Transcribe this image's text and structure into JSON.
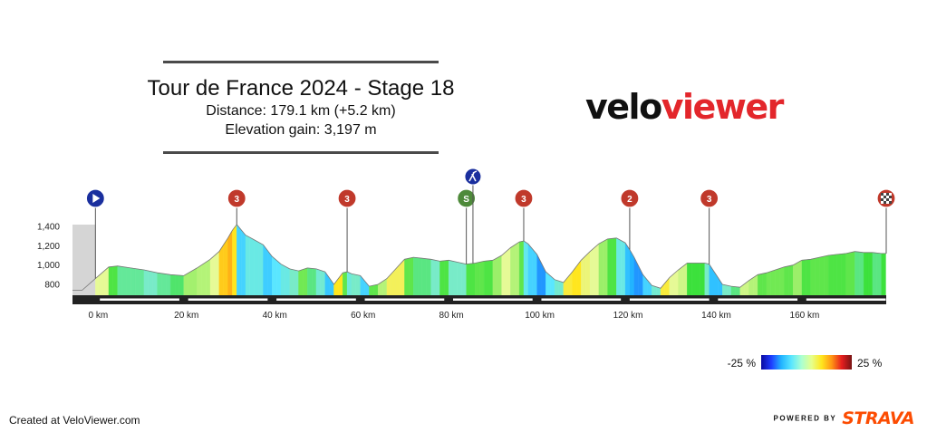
{
  "header": {
    "title": "Tour de France 2024 - Stage 18",
    "distance": "Distance: 179.1 km (+5.2 km)",
    "elevation_gain": "Elevation gain: 3,197 m"
  },
  "logo": {
    "part1": "velo",
    "part2": "viewer"
  },
  "footer": {
    "created": "Created at VeloViewer.com",
    "powered_by": "POWERED BY",
    "strava": "STRAVA"
  },
  "legend": {
    "min_label": "-25 %",
    "max_label": "25 %",
    "colors": [
      "#0a0aa0",
      "#1e3cff",
      "#22b4ff",
      "#5ae6ff",
      "#aaffd2",
      "#e6ff8c",
      "#ffe61e",
      "#ff9614",
      "#e61e1e",
      "#781414"
    ]
  },
  "colors": {
    "climb_marker": "#c0392b",
    "start_marker": "#1a2f9e",
    "sprint_marker": "#4e8a3a",
    "feed_marker": "#1a2f9e",
    "finish_marker": "#c0392b",
    "pre_start": "#d5d5d5"
  },
  "chart_data": {
    "type": "area",
    "title": "Tour de France 2024 - Stage 18",
    "x_unit": "km",
    "y_unit": "m",
    "xlim": [
      -5.2,
      179.1
    ],
    "ylim": [
      680,
      1480
    ],
    "y_ticks": [
      800,
      1000,
      1200,
      1400
    ],
    "y_tick_labels": [
      "800",
      "1,000",
      "1,200",
      "1,400"
    ],
    "x_ticks": [
      0,
      20,
      40,
      60,
      80,
      100,
      120,
      140,
      160
    ],
    "x_tick_labels": [
      "0 km",
      "20 km",
      "40 km",
      "60 km",
      "80 km",
      "100 km",
      "120 km",
      "140 km",
      "160 km"
    ],
    "grid": false,
    "neutral_start_km": -5.2,
    "profile": {
      "x": [
        -5.2,
        -3,
        0,
        3,
        5,
        8,
        11,
        14,
        17,
        20,
        23,
        26,
        28,
        30,
        31,
        32,
        34,
        36,
        38,
        40,
        42,
        44,
        46,
        48,
        50,
        52,
        54,
        56,
        57,
        58,
        60,
        62,
        64,
        66,
        68,
        70,
        72,
        74,
        76,
        78,
        80,
        82,
        84,
        86,
        88,
        90,
        92,
        94,
        96,
        97,
        98,
        100,
        102,
        104,
        106,
        108,
        110,
        112,
        114,
        116,
        118,
        120,
        121,
        122,
        124,
        126,
        128,
        130,
        132,
        134,
        136,
        138,
        139,
        140,
        141,
        142,
        144,
        146,
        148,
        150,
        152,
        154,
        156,
        158,
        160,
        162,
        164,
        166,
        168,
        170,
        172,
        174,
        176,
        178,
        179.1
      ],
      "y": [
        740,
        740,
        860,
        980,
        990,
        970,
        950,
        920,
        900,
        890,
        970,
        1060,
        1140,
        1280,
        1360,
        1420,
        1310,
        1260,
        1210,
        1090,
        1010,
        960,
        940,
        970,
        960,
        930,
        800,
        920,
        930,
        910,
        890,
        780,
        800,
        860,
        960,
        1060,
        1080,
        1070,
        1060,
        1040,
        1050,
        1030,
        1010,
        1020,
        1040,
        1050,
        1100,
        1180,
        1240,
        1250,
        1220,
        1110,
        930,
        850,
        820,
        930,
        1050,
        1140,
        1220,
        1270,
        1280,
        1230,
        1160,
        1080,
        900,
        790,
        760,
        870,
        950,
        1020,
        1020,
        1020,
        1010,
        940,
        870,
        800,
        780,
        770,
        840,
        900,
        920,
        950,
        980,
        1000,
        1050,
        1060,
        1080,
        1100,
        1110,
        1120,
        1140,
        1130,
        1130,
        1120,
        1120
      ]
    },
    "markers": [
      {
        "type": "start",
        "label": "",
        "km": 0
      },
      {
        "type": "climb",
        "label": "3",
        "km": 32
      },
      {
        "type": "climb",
        "label": "3",
        "km": 57
      },
      {
        "type": "sprint",
        "label": "S",
        "km": 84
      },
      {
        "type": "feed",
        "label": "",
        "km": 85.5
      },
      {
        "type": "climb",
        "label": "3",
        "km": 97
      },
      {
        "type": "climb",
        "label": "2",
        "km": 121
      },
      {
        "type": "climb",
        "label": "3",
        "km": 139
      },
      {
        "type": "finish",
        "label": "",
        "km": 179.1
      }
    ]
  }
}
